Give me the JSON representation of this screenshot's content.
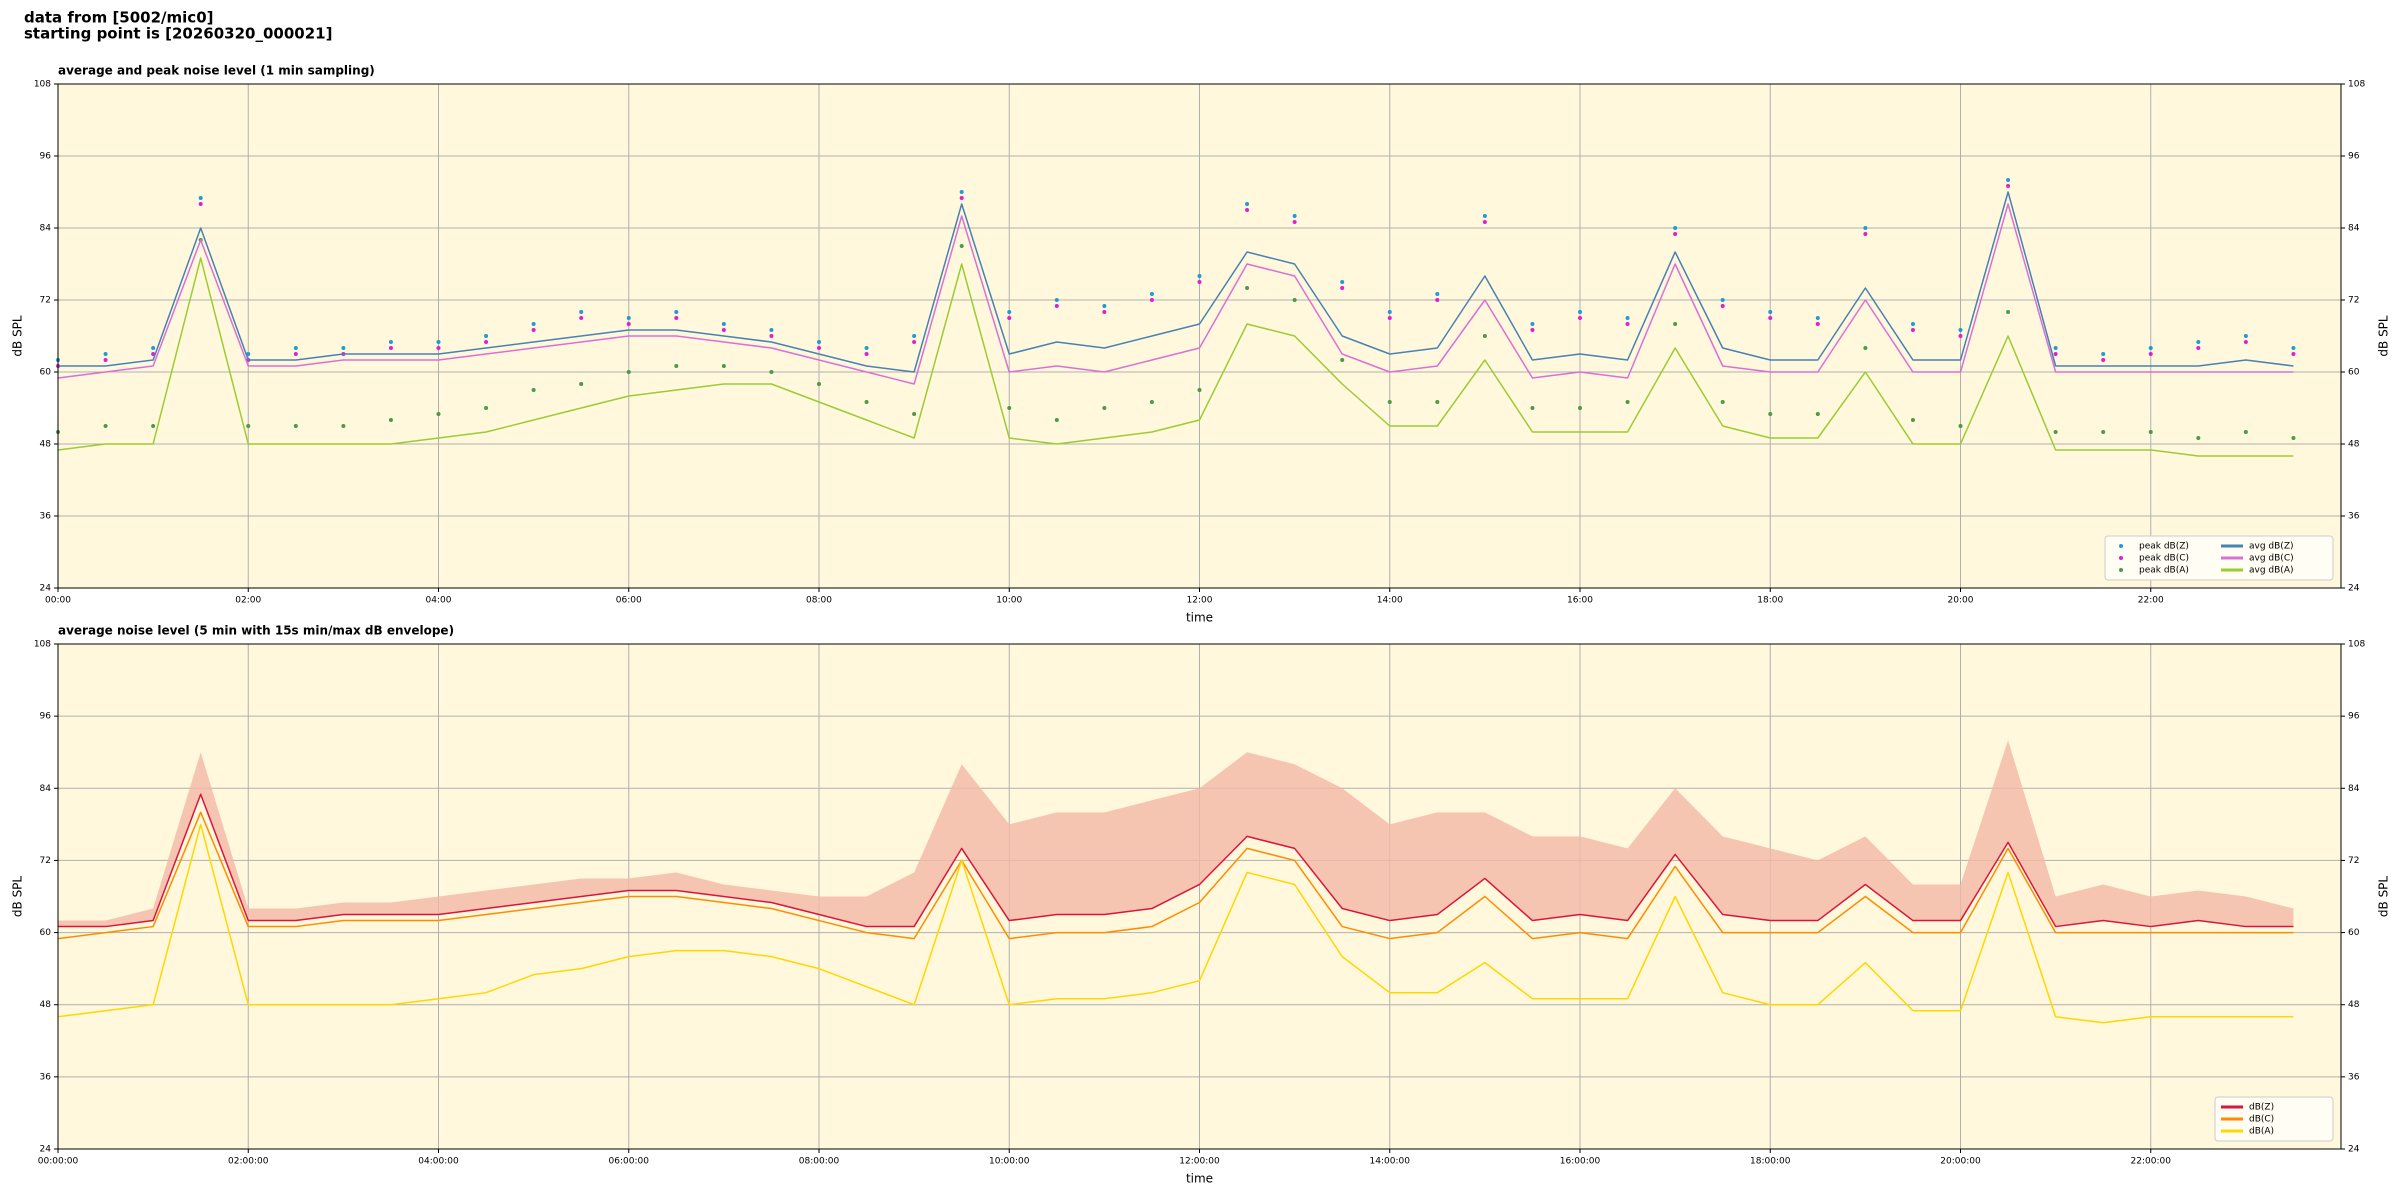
{
  "header": [
    "data from [5002/mic0]",
    "starting point is [20260320_000021]"
  ],
  "chart_data": [
    {
      "type": "line",
      "title": "average and peak noise level (1 min sampling)",
      "xlabel": "time",
      "ylabel": "dB SPL",
      "background": "#fff8dc",
      "grid": true,
      "legend": "lower right",
      "legend_columns": 2,
      "xlim": [
        0,
        1440
      ],
      "ylim": [
        24,
        108
      ],
      "yticks": [
        24,
        36,
        48,
        60,
        72,
        84,
        96,
        108
      ],
      "xticks": [
        {
          "value": 0,
          "label": "00:00"
        },
        {
          "value": 120,
          "label": "02:00"
        },
        {
          "value": 240,
          "label": "04:00"
        },
        {
          "value": 360,
          "label": "06:00"
        },
        {
          "value": 480,
          "label": "08:00"
        },
        {
          "value": 600,
          "label": "10:00"
        },
        {
          "value": 720,
          "label": "12:00"
        },
        {
          "value": 840,
          "label": "14:00"
        },
        {
          "value": 960,
          "label": "16:00"
        },
        {
          "value": 1080,
          "label": "18:00"
        },
        {
          "value": 1200,
          "label": "20:00"
        },
        {
          "value": 1320,
          "label": "22:00"
        }
      ],
      "x": [
        0,
        30,
        60,
        90,
        120,
        150,
        180,
        210,
        240,
        270,
        300,
        330,
        360,
        390,
        420,
        450,
        480,
        510,
        540,
        570,
        600,
        630,
        660,
        690,
        720,
        750,
        780,
        810,
        840,
        870,
        900,
        930,
        960,
        990,
        1020,
        1050,
        1080,
        1110,
        1140,
        1170,
        1200,
        1230,
        1260,
        1290,
        1320,
        1350,
        1380,
        1410
      ],
      "series": [
        {
          "name": "peak dB(Z)",
          "style": "marker",
          "color": "#1f9bd6",
          "values": [
            62,
            63,
            64,
            89,
            63,
            64,
            64,
            65,
            65,
            66,
            68,
            70,
            69,
            70,
            68,
            67,
            65,
            64,
            66,
            90,
            70,
            72,
            71,
            73,
            76,
            88,
            86,
            75,
            70,
            73,
            86,
            68,
            70,
            69,
            84,
            72,
            70,
            69,
            84,
            68,
            67,
            92,
            64,
            63,
            64,
            65,
            66,
            64
          ]
        },
        {
          "name": "peak dB(C)",
          "style": "marker",
          "color": "#e020d0",
          "values": [
            61,
            62,
            63,
            88,
            62,
            63,
            63,
            64,
            64,
            65,
            67,
            69,
            68,
            69,
            67,
            66,
            64,
            63,
            65,
            89,
            69,
            71,
            70,
            72,
            75,
            87,
            85,
            74,
            69,
            72,
            85,
            67,
            69,
            68,
            83,
            71,
            69,
            68,
            83,
            67,
            66,
            91,
            63,
            62,
            63,
            64,
            65,
            63
          ]
        },
        {
          "name": "peak dB(A)",
          "style": "marker",
          "color": "#4a9a4a",
          "values": [
            50,
            51,
            51,
            82,
            51,
            51,
            51,
            52,
            53,
            54,
            57,
            58,
            60,
            61,
            61,
            60,
            58,
            55,
            53,
            81,
            54,
            52,
            54,
            55,
            57,
            74,
            72,
            62,
            55,
            55,
            66,
            54,
            54,
            55,
            68,
            55,
            53,
            53,
            64,
            52,
            51,
            70,
            50,
            50,
            50,
            49,
            50,
            49
          ]
        },
        {
          "name": "avg dB(Z)",
          "style": "line",
          "color": "#4682b4",
          "values": [
            61,
            61,
            62,
            84,
            62,
            62,
            63,
            63,
            63,
            64,
            65,
            66,
            67,
            67,
            66,
            65,
            63,
            61,
            60,
            88,
            63,
            65,
            64,
            66,
            68,
            80,
            78,
            66,
            63,
            64,
            76,
            62,
            63,
            62,
            80,
            64,
            62,
            62,
            74,
            62,
            62,
            90,
            61,
            61,
            61,
            61,
            62,
            61
          ]
        },
        {
          "name": "avg dB(C)",
          "style": "line",
          "color": "#da70d6",
          "values": [
            59,
            60,
            61,
            82,
            61,
            61,
            62,
            62,
            62,
            63,
            64,
            65,
            66,
            66,
            65,
            64,
            62,
            60,
            58,
            86,
            60,
            61,
            60,
            62,
            64,
            78,
            76,
            63,
            60,
            61,
            72,
            59,
            60,
            59,
            78,
            61,
            60,
            60,
            72,
            60,
            60,
            88,
            60,
            60,
            60,
            60,
            60,
            60
          ]
        },
        {
          "name": "avg dB(A)",
          "style": "line",
          "color": "#9acd32",
          "values": [
            47,
            48,
            48,
            79,
            48,
            48,
            48,
            48,
            49,
            50,
            52,
            54,
            56,
            57,
            58,
            58,
            55,
            52,
            49,
            78,
            49,
            48,
            49,
            50,
            52,
            68,
            66,
            58,
            51,
            51,
            62,
            50,
            50,
            50,
            64,
            51,
            49,
            49,
            60,
            48,
            48,
            66,
            47,
            47,
            47,
            46,
            46,
            46
          ]
        }
      ]
    },
    {
      "type": "line",
      "title": "average noise level (5 min with 15s min/max dB envelope)",
      "xlabel": "time",
      "ylabel": "dB SPL",
      "background": "#fff8dc",
      "grid": true,
      "legend": "lower right",
      "legend_columns": 1,
      "xlim": [
        0,
        1440
      ],
      "ylim": [
        24,
        108
      ],
      "yticks": [
        24,
        36,
        48,
        60,
        72,
        84,
        96,
        108
      ],
      "xticks": [
        {
          "value": 0,
          "label": "00:00:00"
        },
        {
          "value": 120,
          "label": "02:00:00"
        },
        {
          "value": 240,
          "label": "04:00:00"
        },
        {
          "value": 360,
          "label": "06:00:00"
        },
        {
          "value": 480,
          "label": "08:00:00"
        },
        {
          "value": 600,
          "label": "10:00:00"
        },
        {
          "value": 720,
          "label": "12:00:00"
        },
        {
          "value": 840,
          "label": "14:00:00"
        },
        {
          "value": 960,
          "label": "16:00:00"
        },
        {
          "value": 1080,
          "label": "18:00:00"
        },
        {
          "value": 1200,
          "label": "20:00:00"
        },
        {
          "value": 1320,
          "label": "22:00:00"
        }
      ],
      "x": [
        0,
        30,
        60,
        90,
        120,
        150,
        180,
        210,
        240,
        270,
        300,
        330,
        360,
        390,
        420,
        450,
        480,
        510,
        540,
        570,
        600,
        630,
        660,
        690,
        720,
        750,
        780,
        810,
        840,
        870,
        900,
        930,
        960,
        990,
        1020,
        1050,
        1080,
        1110,
        1140,
        1170,
        1200,
        1230,
        1260,
        1290,
        1320,
        1350,
        1380,
        1410
      ],
      "series": [
        {
          "name": "dB(Z)",
          "style": "line",
          "color": "#dc143c",
          "band_color": "#f4b8a8",
          "values": [
            61,
            61,
            62,
            83,
            62,
            62,
            63,
            63,
            63,
            64,
            65,
            66,
            67,
            67,
            66,
            65,
            63,
            61,
            61,
            74,
            62,
            63,
            63,
            64,
            68,
            76,
            74,
            64,
            62,
            63,
            69,
            62,
            63,
            62,
            73,
            63,
            62,
            62,
            68,
            62,
            62,
            75,
            61,
            62,
            61,
            62,
            61,
            61
          ],
          "upper": [
            62,
            62,
            64,
            90,
            64,
            64,
            65,
            65,
            66,
            67,
            68,
            69,
            69,
            70,
            68,
            67,
            66,
            66,
            70,
            88,
            78,
            80,
            80,
            82,
            84,
            90,
            88,
            84,
            78,
            80,
            80,
            76,
            76,
            74,
            84,
            76,
            74,
            72,
            76,
            68,
            68,
            92,
            66,
            68,
            66,
            67,
            66,
            64
          ]
        },
        {
          "name": "dB(C)",
          "style": "line",
          "color": "#ff8c00",
          "values": [
            59,
            60,
            61,
            80,
            61,
            61,
            62,
            62,
            62,
            63,
            64,
            65,
            66,
            66,
            65,
            64,
            62,
            60,
            59,
            72,
            59,
            60,
            60,
            61,
            65,
            74,
            72,
            61,
            59,
            60,
            66,
            59,
            60,
            59,
            71,
            60,
            60,
            60,
            66,
            60,
            60,
            74,
            60,
            60,
            60,
            60,
            60,
            60
          ]
        },
        {
          "name": "dB(A)",
          "style": "line",
          "color": "#ffd700",
          "values": [
            46,
            47,
            48,
            78,
            48,
            48,
            48,
            48,
            49,
            50,
            53,
            54,
            56,
            57,
            57,
            56,
            54,
            51,
            48,
            72,
            48,
            49,
            49,
            50,
            52,
            70,
            68,
            56,
            50,
            50,
            55,
            49,
            49,
            49,
            66,
            50,
            48,
            48,
            55,
            47,
            47,
            70,
            46,
            45,
            46,
            46,
            46,
            46
          ]
        }
      ]
    }
  ]
}
